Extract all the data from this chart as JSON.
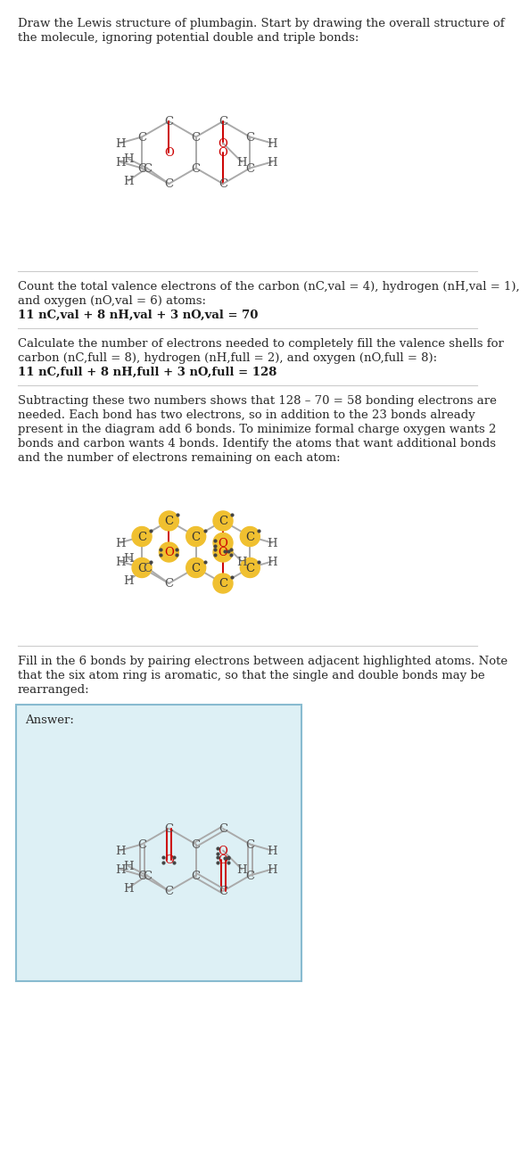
{
  "bg_color": "#ffffff",
  "bond_color": "#aaaaaa",
  "o_color": "#cc0000",
  "c_color": "#555555",
  "h_color": "#555555",
  "sep_color": "#cccccc",
  "highlight_yellow": "#f0c030",
  "answer_box_bg": "#ddf0f5",
  "answer_box_border": "#88bbd0",
  "font_size": 9.5,
  "title_lines": [
    "Draw the Lewis structure of plumbagin. Start by drawing the overall structure of",
    "the molecule, ignoring potential double and triple bonds:"
  ],
  "s2_lines": [
    "Count the total valence electrons of the carbon (nC,val = 4), hydrogen (nH,val = 1),",
    "and oxygen (nO,val = 6) atoms:"
  ],
  "s2_formula": "11 nC,val + 8 nH,val + 3 nO,val = 70",
  "s3_lines": [
    "Calculate the number of electrons needed to completely fill the valence shells for",
    "carbon (nC,full = 8), hydrogen (nH,full = 2), and oxygen (nO,full = 8):"
  ],
  "s3_formula": "11 nC,full + 8 nH,full + 3 nO,full = 128",
  "s4_lines": [
    "Subtracting these two numbers shows that 128 – 70 = 58 bonding electrons are",
    "needed. Each bond has two electrons, so in addition to the 23 bonds already",
    "present in the diagram add 6 bonds. To minimize formal charge oxygen wants 2",
    "bonds and carbon wants 4 bonds. Identify the atoms that want additional bonds",
    "and the number of electrons remaining on each atom:"
  ],
  "s5_lines": [
    "Fill in the 6 bonds by pairing electrons between adjacent highlighted atoms. Note",
    "that the six atom ring is aromatic, so that the single and double bonds may be",
    "rearranged:"
  ],
  "answer_label": "Answer:"
}
